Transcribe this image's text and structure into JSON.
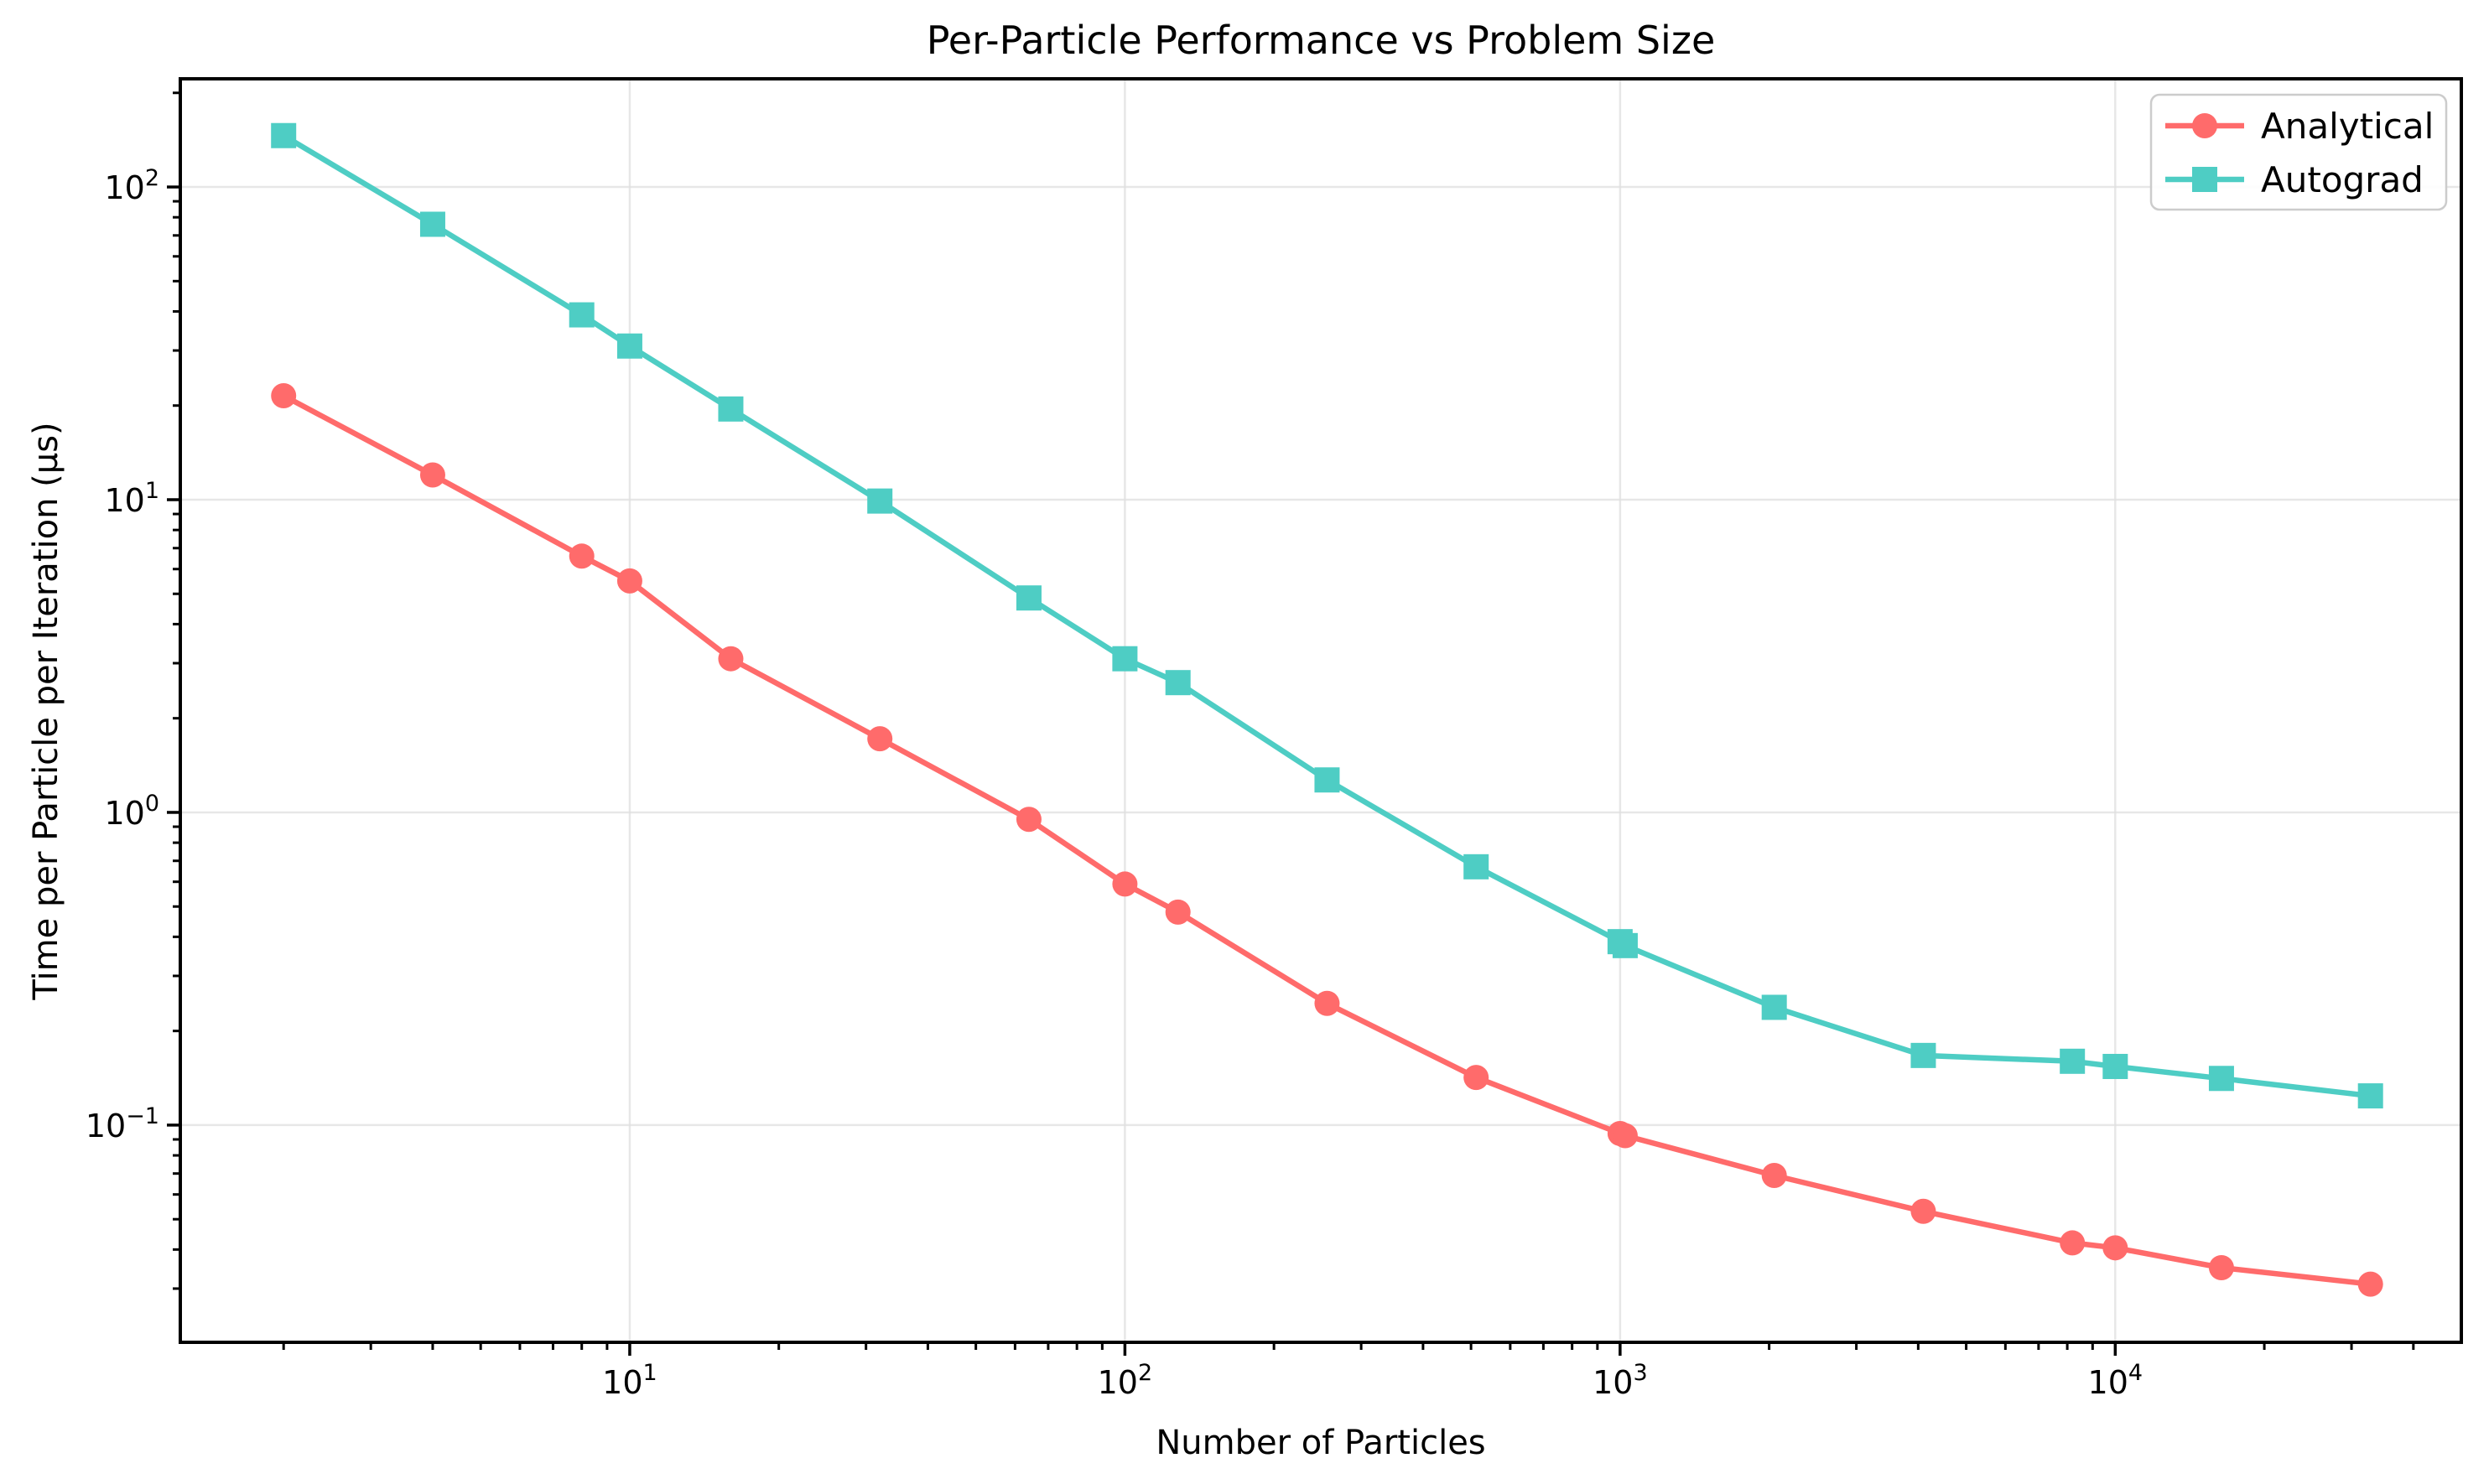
{
  "chart_data": {
    "type": "line",
    "title": "Per-Particle Performance vs Problem Size",
    "xlabel": "Number of Particles",
    "ylabel": "Time per Particle per Iteration (μs)",
    "x_scale": "log",
    "y_scale": "log",
    "xlim": [
      1.237,
      49990
    ],
    "ylim": [
      0.0202,
      221.8
    ],
    "grid": "major-only",
    "x_major_tick_exponents": [
      1,
      2,
      3,
      4
    ],
    "y_major_tick_exponents": [
      2,
      1,
      0,
      -1
    ],
    "x_tick_labels": [
      "10¹",
      "10²",
      "10³",
      "10⁴"
    ],
    "y_tick_labels": [
      "10²",
      "10¹",
      "10⁰",
      "10⁻¹"
    ],
    "x": [
      2,
      4,
      8,
      10,
      16,
      32,
      64,
      100,
      128,
      256,
      512,
      1000,
      1024,
      2048,
      4096,
      8192,
      10000,
      16384,
      32768
    ],
    "series": [
      {
        "name": "Analytical",
        "color": "#FF6B6B",
        "marker": "circle",
        "values": [
          21.5,
          12.0,
          6.6,
          5.5,
          3.1,
          1.72,
          0.95,
          0.59,
          0.48,
          0.245,
          0.142,
          0.094,
          0.0925,
          0.069,
          0.053,
          0.042,
          0.0405,
          0.035,
          0.031
        ]
      },
      {
        "name": "Autograd",
        "color": "#4ECDC4",
        "marker": "square",
        "values": [
          146,
          76,
          39,
          31,
          19.5,
          9.9,
          4.85,
          3.1,
          2.6,
          1.27,
          0.67,
          0.386,
          0.375,
          0.238,
          0.167,
          0.16,
          0.154,
          0.141,
          0.124
        ]
      }
    ],
    "legend": {
      "position": "upper-right",
      "entries": [
        {
          "label": "Analytical",
          "color": "#FF6B6B",
          "marker": "circle"
        },
        {
          "label": "Autograd",
          "color": "#4ECDC4",
          "marker": "square"
        }
      ]
    },
    "colors": {
      "analytical": "#FF6B6B",
      "autograd": "#4ECDC4",
      "grid": "#e0e0e0",
      "spine": "#000000",
      "legend_border": "#cccccc",
      "background": "#ffffff"
    }
  }
}
